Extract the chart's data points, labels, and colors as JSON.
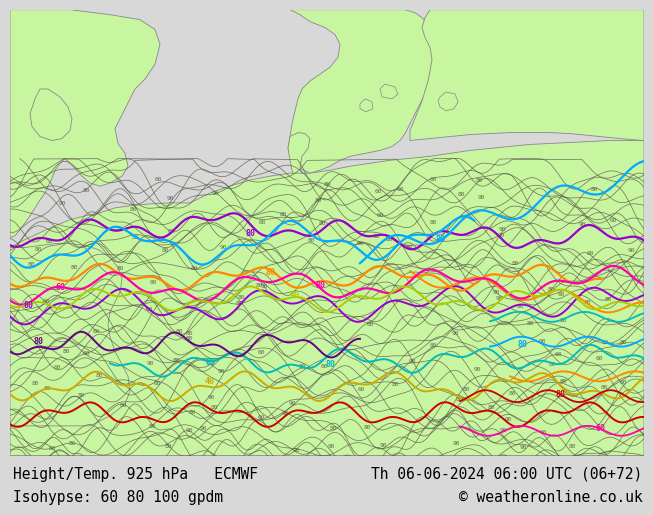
{
  "title_left": "Height/Temp. 925 hPa   ECMWF",
  "title_right": "Th 06-06-2024 06:00 UTC (06+72)",
  "subtitle_left": "Isohypse: 60 80 100 gpdm",
  "subtitle_right": "© weatheronline.co.uk",
  "bg_color_land": "#c8f5a0",
  "bg_color_sea": "#d8d8d8",
  "coast_color": "#888888",
  "contour_color": "#555544",
  "bottom_bar_color": "#c8f0c8",
  "bottom_text_color": "#000000",
  "font_size_bottom": 10.5,
  "line_colors": {
    "purple": "#9900cc",
    "cyan": "#00aaff",
    "orange": "#ff8800",
    "magenta": "#ff00aa",
    "yellow_green": "#aacc00",
    "teal": "#00bbbb",
    "yellow": "#ccaa00",
    "red": "#cc0000",
    "dark_purple": "#660088",
    "green": "#44cc44"
  }
}
